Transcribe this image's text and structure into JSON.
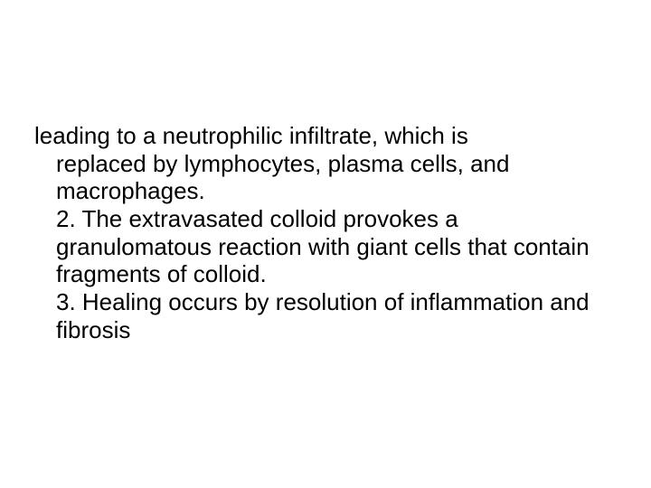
{
  "slide": {
    "background_color": "#ffffff",
    "text_color": "#000000",
    "font_family": "Arial",
    "font_size_pt": 26,
    "line_height": 1.18,
    "first_line": "leading to a neutrophilic infiltrate, which is",
    "block1": "replaced by  lymphocytes, plasma cells, and macrophages.",
    "block2": "2. The extravasated colloid provokes a granulomatous reaction with giant cells that contain fragments of colloid.",
    "block3": "3. Healing occurs by resolution of inflammation and fibrosis"
  }
}
